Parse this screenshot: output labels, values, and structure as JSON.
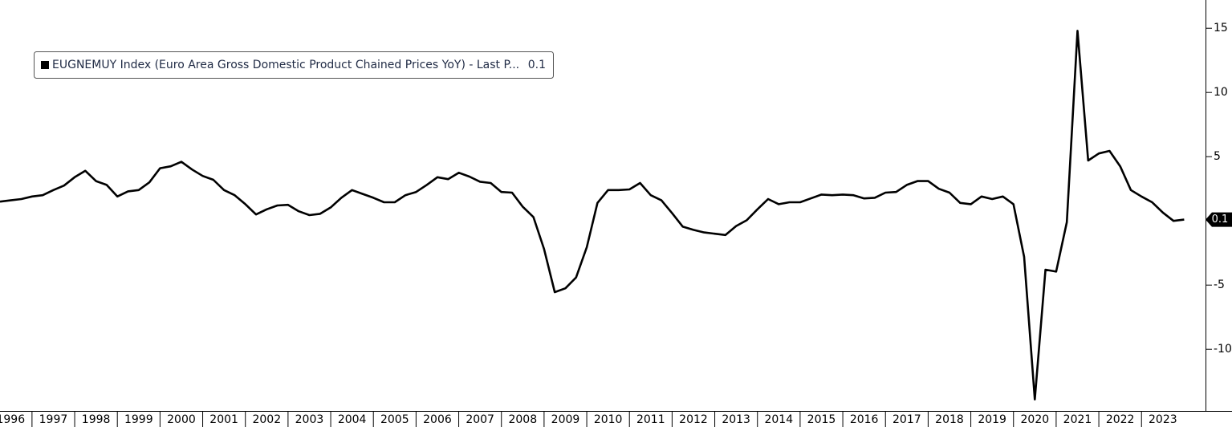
{
  "chart_data": {
    "type": "line",
    "series": [
      {
        "name": "EUGNEMUY Index (Euro Area Gross Domestic Product Chained  Prices YoY) - Last P...",
        "color": "#000000",
        "values": [
          1.5,
          1.6,
          1.7,
          1.9,
          2.0,
          2.4,
          2.75,
          3.4,
          3.9,
          3.1,
          2.8,
          1.9,
          2.3,
          2.4,
          3.0,
          4.1,
          4.25,
          4.6,
          4.0,
          3.5,
          3.2,
          2.4,
          2.0,
          1.3,
          0.5,
          0.9,
          1.2,
          1.25,
          0.75,
          0.45,
          0.55,
          1.05,
          1.8,
          2.4,
          2.1,
          1.8,
          1.45,
          1.45,
          2.0,
          2.25,
          2.8,
          3.4,
          3.25,
          3.75,
          3.45,
          3.05,
          2.95,
          2.25,
          2.2,
          1.1,
          0.3,
          -2.2,
          -5.55,
          -5.25,
          -4.4,
          -2.05,
          1.4,
          2.4,
          2.4,
          2.45,
          2.95,
          2.0,
          1.6,
          0.6,
          -0.45,
          -0.7,
          -0.9,
          -1.0,
          -1.1,
          -0.4,
          0.05,
          0.9,
          1.7,
          1.3,
          1.45,
          1.45,
          1.75,
          2.05,
          2.0,
          2.05,
          2.0,
          1.75,
          1.8,
          2.2,
          2.25,
          2.8,
          3.1,
          3.1,
          2.5,
          2.2,
          1.4,
          1.3,
          1.9,
          1.7,
          1.9,
          1.3,
          -2.8,
          -13.9,
          -3.8,
          -3.95,
          -0.1,
          14.8,
          4.7,
          5.25,
          5.45,
          4.25,
          2.4,
          1.9,
          1.45,
          0.65,
          0.0,
          0.1
        ]
      }
    ],
    "x": [
      1996.25,
      1996.5,
      1996.75,
      1997,
      1997.25,
      1997.5,
      1997.75,
      1998,
      1998.25,
      1998.5,
      1998.75,
      1999,
      1999.25,
      1999.5,
      1999.75,
      2000,
      2000.25,
      2000.5,
      2000.75,
      2001,
      2001.25,
      2001.5,
      2001.75,
      2002,
      2002.25,
      2002.5,
      2002.75,
      2003,
      2003.25,
      2003.5,
      2003.75,
      2004,
      2004.25,
      2004.5,
      2004.75,
      2005,
      2005.25,
      2005.5,
      2005.75,
      2006,
      2006.25,
      2006.5,
      2006.75,
      2007,
      2007.25,
      2007.5,
      2007.75,
      2008,
      2008.25,
      2008.5,
      2008.75,
      2009,
      2009.25,
      2009.5,
      2009.75,
      2010,
      2010.25,
      2010.5,
      2010.75,
      2011,
      2011.25,
      2011.5,
      2011.75,
      2012,
      2012.25,
      2012.5,
      2012.75,
      2013,
      2013.25,
      2013.5,
      2013.75,
      2014,
      2014.25,
      2014.5,
      2014.75,
      2015,
      2015.25,
      2015.5,
      2015.75,
      2016,
      2016.25,
      2016.5,
      2016.75,
      2017,
      2017.25,
      2017.5,
      2017.75,
      2018,
      2018.25,
      2018.5,
      2018.75,
      2019,
      2019.25,
      2019.5,
      2019.75,
      2020,
      2020.25,
      2020.5,
      2020.75,
      2021,
      2021.25,
      2021.5,
      2021.75,
      2022,
      2022.25,
      2022.5,
      2022.75,
      2023,
      2023.25,
      2023.5,
      2023.75,
      2024
    ],
    "last_value": 0.1,
    "xlim": [
      1996.25,
      2024.5
    ],
    "xticks": [
      1996,
      1997,
      1998,
      1999,
      2000,
      2001,
      2002,
      2003,
      2004,
      2005,
      2006,
      2007,
      2008,
      2009,
      2010,
      2011,
      2012,
      2013,
      2014,
      2015,
      2016,
      2017,
      2018,
      2019,
      2020,
      2021,
      2022,
      2023
    ],
    "ylim": [
      -14.8,
      17.2
    ],
    "yticks": [
      15,
      10,
      5,
      -5,
      -10
    ]
  }
}
